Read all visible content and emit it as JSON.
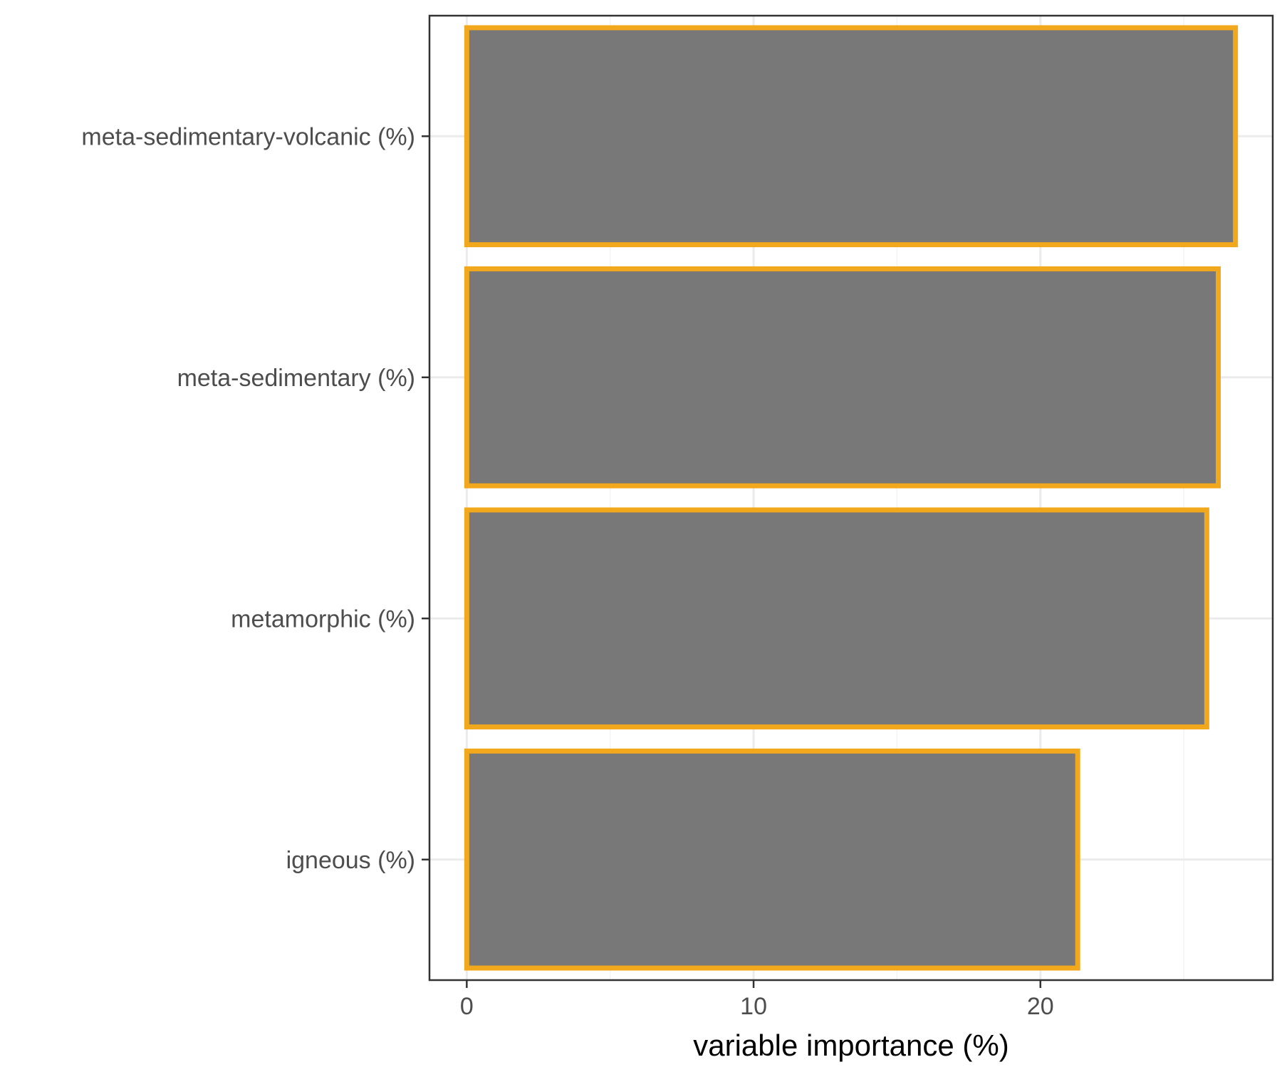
{
  "chart_data": {
    "type": "bar",
    "orientation": "horizontal",
    "categories": [
      "meta-sedimentary-volcanic (%)",
      "meta-sedimentary (%)",
      "metamorphic (%)",
      "igneous (%)"
    ],
    "values": [
      26.8,
      26.2,
      25.8,
      21.3
    ],
    "title": "",
    "xlabel": "variable importance (%)",
    "ylabel": "",
    "xlim": [
      -1.3,
      28.1
    ],
    "xticks": [
      0,
      10,
      20
    ],
    "grid": true,
    "legend": "none",
    "colors": {
      "bar_fill": "#757575",
      "bar_outline": "#F2A81D",
      "panel_border": "#333333",
      "grid_major": "#EBEBEB",
      "grid_minor": "#F4F4F4",
      "tick_text": "#4d4d4d",
      "axis_title": "#000000"
    }
  }
}
